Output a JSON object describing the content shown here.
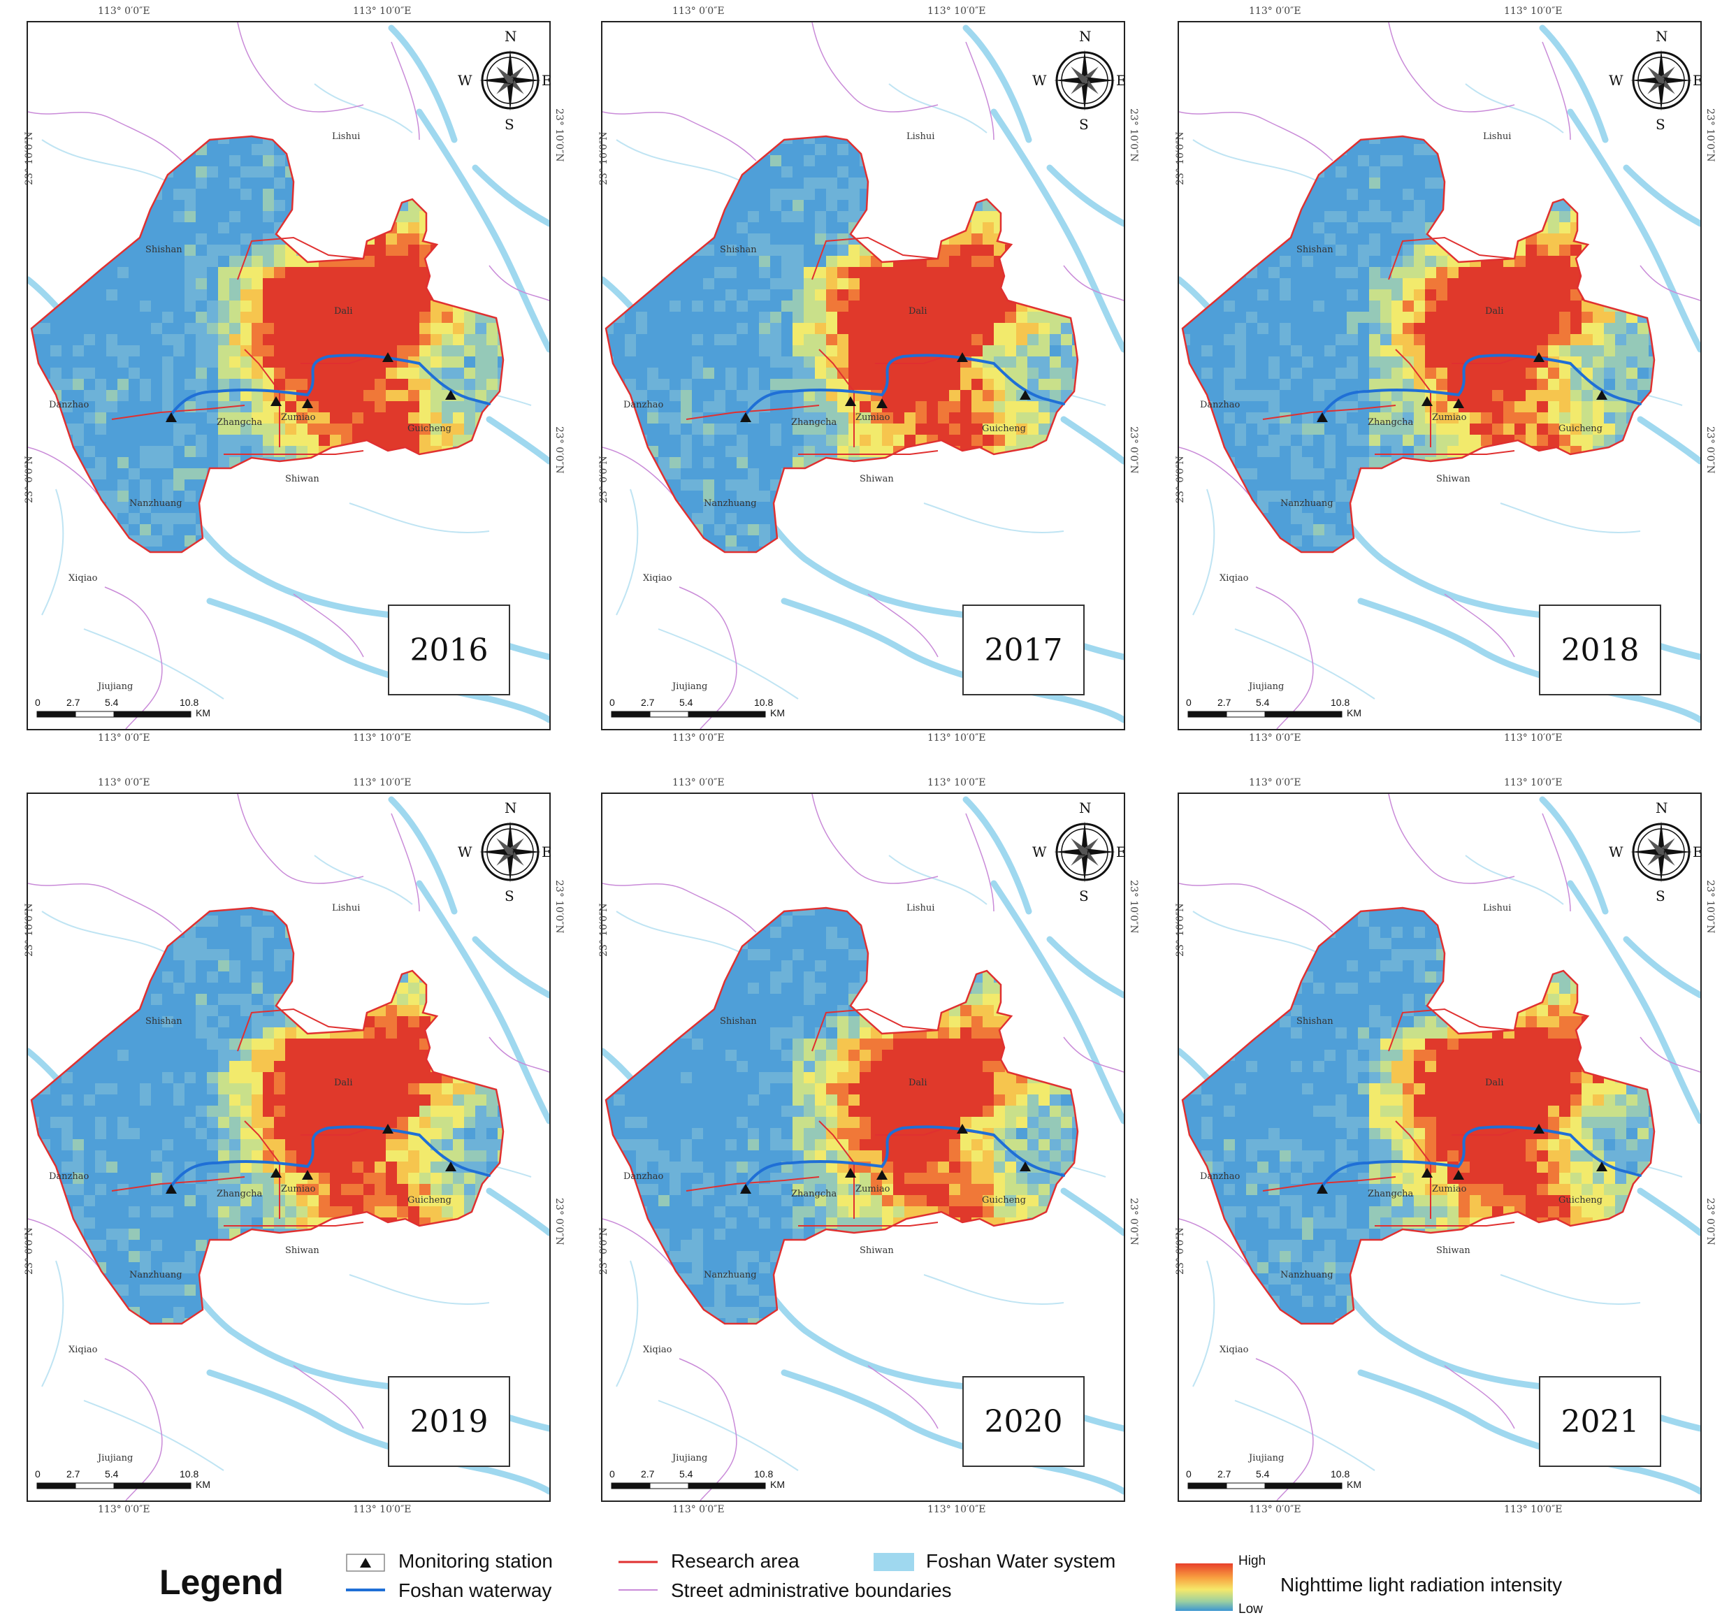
{
  "coords": {
    "top_left": "113° 0′0″E",
    "top_right": "113° 10′0″E",
    "bottom_left": "113° 0′0″E",
    "bottom_right": "113° 10′0″E",
    "lat_upper": "23° 10′0″N",
    "lat_lower": "23° 0′0″N"
  },
  "compass": {
    "n": "N",
    "s": "S",
    "e": "E",
    "w": "W"
  },
  "places": {
    "lishui": "Lishui",
    "shishan": "Shishan",
    "dali": "Dali",
    "danzhao": "Danzhao",
    "zhangcha": "Zhangcha",
    "zumiao": "Zumiao",
    "guicheng": "Guicheng",
    "shiwan": "Shiwan",
    "nanzhuang": "Nanzhuang",
    "xiqiao": "Xiqiao",
    "jiujiang": "Jiujiang"
  },
  "scale": {
    "t0": "0",
    "t1": "2.7",
    "t2": "5.4",
    "t3": "10.8",
    "unit": "KM"
  },
  "panels": [
    {
      "year": "2016",
      "intensity": 0.85
    },
    {
      "year": "2017",
      "intensity": 0.75
    },
    {
      "year": "2018",
      "intensity": 0.55
    },
    {
      "year": "2019",
      "intensity": 0.65
    },
    {
      "year": "2020",
      "intensity": 0.5
    },
    {
      "year": "2021",
      "intensity": 0.7
    }
  ],
  "legend": {
    "title": "Legend",
    "monitoring_station": "Monitoring station",
    "foshan_waterway": "Foshan waterway",
    "research_area": "Research area",
    "street_boundaries": "Street administrative boundaries",
    "water_system": "Foshan Water system",
    "high": "High",
    "low": "Low",
    "radiance": "Nighttime light radiation intensity"
  },
  "colors": {
    "research_area": "#e03030",
    "waterway": "#1f6fd6",
    "water_system": "#9fd8ef",
    "street_boundary": "#c98ad8",
    "high": "#e8402a",
    "mid": "#f5e86a",
    "low": "#3c96d2"
  }
}
